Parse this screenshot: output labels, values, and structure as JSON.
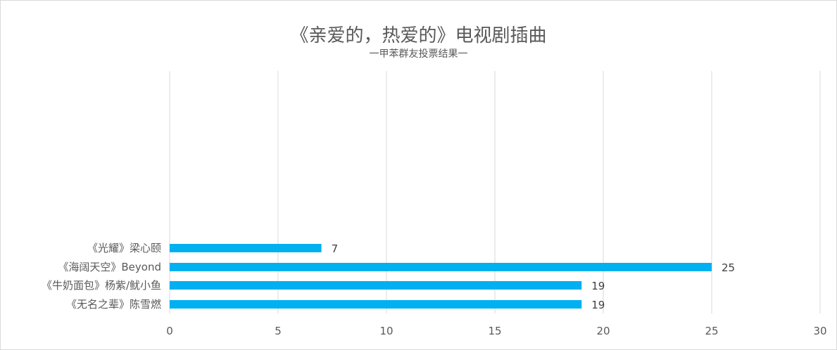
{
  "chart_data": {
    "type": "bar",
    "orientation": "horizontal",
    "title": "《亲爱的，热爱的》电视剧插曲",
    "subtitle": "一甲苯群友投票结果一",
    "categories": [
      "《光耀》梁心颐",
      "《海阔天空》Beyond",
      "《牛奶面包》杨紫/鱿小鱼",
      "《无名之辈》陈雪燃"
    ],
    "values": [
      7,
      25,
      19,
      19
    ],
    "xlim": [
      0,
      30
    ],
    "xticks": [
      0,
      5,
      10,
      15,
      20,
      25,
      30
    ],
    "grid": true,
    "bar_color": "#00b0f0"
  }
}
